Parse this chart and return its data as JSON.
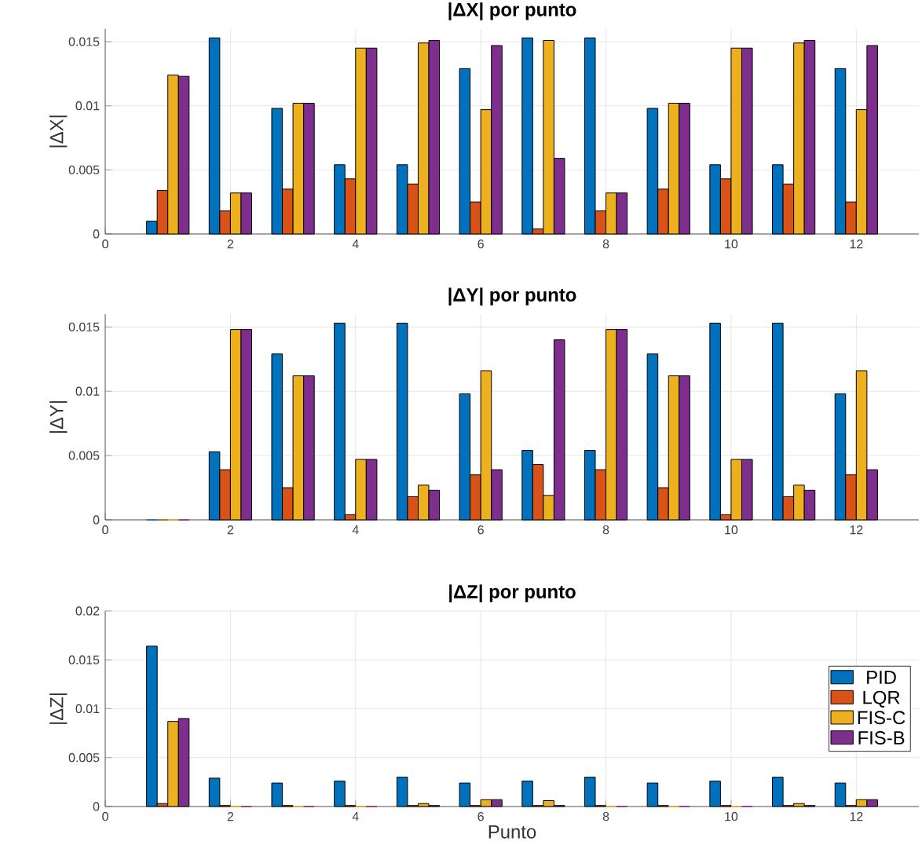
{
  "chart_data": [
    {
      "type": "bar",
      "title": "|ΔX| por punto",
      "ylabel": "|ΔX|",
      "x": [
        1,
        2,
        3,
        4,
        5,
        6,
        7,
        8,
        9,
        10,
        11,
        12
      ],
      "xlim": [
        0,
        13
      ],
      "xticks": [
        0,
        2,
        4,
        6,
        8,
        10,
        12
      ],
      "ylim": [
        0,
        0.016
      ],
      "yticks": [
        0,
        0.005,
        0.01,
        0.015
      ],
      "grid": true,
      "series": [
        {
          "color": "#0072bd",
          "values": [
            0.001,
            0.0153,
            0.0098,
            0.0054,
            0.0054,
            0.0129,
            0.0153,
            0.0153,
            0.0098,
            0.0054,
            0.0054,
            0.0129
          ]
        },
        {
          "color": "#d95319",
          "values": [
            0.0034,
            0.0018,
            0.0035,
            0.0043,
            0.0039,
            0.0025,
            0.0004,
            0.0018,
            0.0035,
            0.0043,
            0.0039,
            0.0025
          ]
        },
        {
          "color": "#edb120",
          "values": [
            0.0124,
            0.0032,
            0.0102,
            0.0145,
            0.0149,
            0.0097,
            0.0151,
            0.0032,
            0.0102,
            0.0145,
            0.0149,
            0.0097
          ]
        },
        {
          "color": "#7e2f8e",
          "values": [
            0.0123,
            0.0032,
            0.0102,
            0.0145,
            0.0151,
            0.0147,
            0.0059,
            0.0032,
            0.0102,
            0.0145,
            0.0151,
            0.0147
          ]
        }
      ]
    },
    {
      "type": "bar",
      "title": "|ΔY| por punto",
      "ylabel": "|ΔY|",
      "x": [
        1,
        2,
        3,
        4,
        5,
        6,
        7,
        8,
        9,
        10,
        11,
        12
      ],
      "xlim": [
        0,
        13
      ],
      "xticks": [
        0,
        2,
        4,
        6,
        8,
        10,
        12
      ],
      "ylim": [
        0,
        0.016
      ],
      "yticks": [
        0,
        0.005,
        0.01,
        0.015
      ],
      "grid": true,
      "series": [
        {
          "color": "#0072bd",
          "values": [
            0,
            0.0053,
            0.0129,
            0.0153,
            0.0153,
            0.0098,
            0.0054,
            0.0054,
            0.0129,
            0.0153,
            0.0153,
            0.0098
          ]
        },
        {
          "color": "#d95319",
          "values": [
            0,
            0.0039,
            0.0025,
            0.0004,
            0.0018,
            0.0035,
            0.0043,
            0.0039,
            0.0025,
            0.0004,
            0.0018,
            0.0035
          ]
        },
        {
          "color": "#edb120",
          "values": [
            0,
            0.0148,
            0.0112,
            0.0047,
            0.0027,
            0.0116,
            0.0019,
            0.0148,
            0.0112,
            0.0047,
            0.0027,
            0.0116
          ]
        },
        {
          "color": "#7e2f8e",
          "values": [
            0,
            0.0148,
            0.0112,
            0.0047,
            0.0023,
            0.0039,
            0.014,
            0.0148,
            0.0112,
            0.0047,
            0.0023,
            0.0039
          ]
        }
      ]
    },
    {
      "type": "bar",
      "title": "|ΔZ| por punto",
      "xlabel": "Punto",
      "ylabel": "|ΔZ|",
      "x": [
        1,
        2,
        3,
        4,
        5,
        6,
        7,
        8,
        9,
        10,
        11,
        12
      ],
      "xlim": [
        0,
        13
      ],
      "xticks": [
        0,
        2,
        4,
        6,
        8,
        10,
        12
      ],
      "ylim": [
        0,
        0.02
      ],
      "yticks": [
        0,
        0.005,
        0.01,
        0.015,
        0.02
      ],
      "grid": true,
      "legend": "right",
      "series": [
        {
          "name": "PID",
          "color": "#0072bd",
          "values": [
            0.0164,
            0.0029,
            0.0024,
            0.0026,
            0.003,
            0.0024,
            0.0026,
            0.003,
            0.0024,
            0.0026,
            0.003,
            0.0024
          ]
        },
        {
          "name": "LQR",
          "color": "#d95319",
          "values": [
            0.0003,
            0.0001,
            0.0001,
            0.0001,
            0.0001,
            0.0001,
            0.0001,
            0.0001,
            0.0001,
            0.0001,
            0.0001,
            0.0001
          ]
        },
        {
          "name": "FIS-C",
          "color": "#edb120",
          "values": [
            0.0087,
            0,
            0,
            0,
            0.0003,
            0.0007,
            0.0006,
            0,
            0,
            0,
            0.0003,
            0.0007
          ]
        },
        {
          "name": "FIS-B",
          "color": "#7e2f8e",
          "values": [
            0.009,
            0,
            0,
            0,
            0.0001,
            0.0007,
            0.0001,
            0,
            0,
            0,
            0.0001,
            0.0007
          ]
        }
      ]
    }
  ]
}
